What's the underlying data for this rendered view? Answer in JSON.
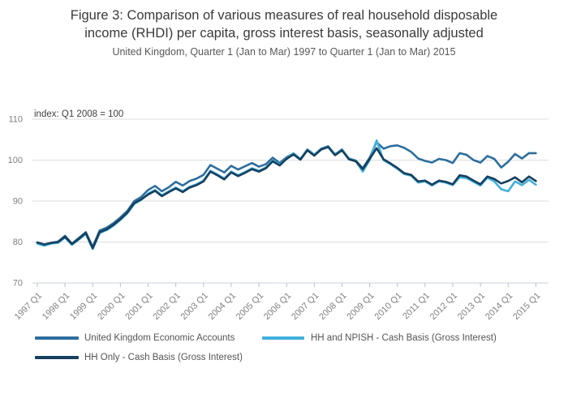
{
  "figure": {
    "title_line1": "Figure 3: Comparison of various measures of real household disposable",
    "title_line2": "income (RHDI) per capita, gross interest basis, seasonally adjusted",
    "subtitle": "United Kingdom, Quarter 1 (Jan to Mar) 1997 to Quarter 1 (Jan to Mar) 2015"
  },
  "chart_data": {
    "type": "line",
    "annotation": "index: Q1 2008 = 100",
    "x_unit": "quarter",
    "x_start": "1997 Q1",
    "x_end": "2015 Q1",
    "x_tick_labels": [
      "1997 Q1",
      "1998 Q1",
      "1999 Q1",
      "2000 Q1",
      "2001 Q1",
      "2002 Q1",
      "2003 Q1",
      "2004 Q1",
      "2005 Q1",
      "2006 Q1",
      "2007 Q1",
      "2008 Q1",
      "2009 Q1",
      "2010 Q1",
      "2011 Q1",
      "2012 Q1",
      "2013 Q1",
      "2014 Q1",
      "2015 Q1"
    ],
    "y_ticks": [
      110,
      100,
      90,
      80,
      70
    ],
    "ylim": [
      70,
      111.5
    ],
    "grid": "horizontal",
    "legend_position": "bottom",
    "colors": {
      "grid": "#dcdcdc",
      "axis": "#c9d2d9",
      "tick": "#b4bfc9",
      "tick_label": "#808080",
      "annotation": "#3f3f3f"
    },
    "series": [
      {
        "name": "United Kingdom Economic Accounts",
        "color": "#2e6e9e",
        "values": [
          79.8,
          79.3,
          79.8,
          80.1,
          81.5,
          79.6,
          81.0,
          82.4,
          78.8,
          82.8,
          83.5,
          84.6,
          86.0,
          87.6,
          90.0,
          91.0,
          92.7,
          93.7,
          92.4,
          93.4,
          94.7,
          93.8,
          94.9,
          95.5,
          96.4,
          98.8,
          97.9,
          97.0,
          98.6,
          97.7,
          98.5,
          99.3,
          98.4,
          99.0,
          100.6,
          99.3,
          100.7,
          101.6,
          100.3,
          102.6,
          101.3,
          102.8,
          103.4,
          101.4,
          102.6,
          100.4,
          99.9,
          98.0,
          100.6,
          104.4,
          102.8,
          103.4,
          103.6,
          103.0,
          102.0,
          100.4,
          99.8,
          99.4,
          100.3,
          100.0,
          99.3,
          101.7,
          101.3,
          100.0,
          99.4,
          101.0,
          100.3,
          98.2,
          99.6,
          101.5,
          100.4,
          101.7,
          101.7
        ]
      },
      {
        "name": "HH and NPISH - Cash Basis (Gross Interest)",
        "color": "#41afdb",
        "values": [
          79.6,
          79.1,
          79.6,
          79.8,
          81.1,
          79.3,
          80.6,
          82.0,
          78.3,
          82.2,
          82.9,
          84.0,
          85.4,
          87.0,
          89.3,
          90.3,
          91.8,
          92.7,
          91.4,
          92.4,
          93.3,
          92.4,
          93.5,
          94.1,
          95.0,
          97.4,
          96.5,
          95.5,
          97.2,
          96.3,
          97.1,
          98.0,
          97.4,
          98.2,
          99.9,
          98.9,
          100.4,
          101.7,
          100.2,
          102.5,
          101.2,
          102.7,
          103.3,
          101.3,
          102.5,
          100.3,
          99.8,
          97.2,
          100.0,
          104.8,
          100.0,
          99.0,
          97.9,
          96.6,
          96.2,
          94.5,
          94.8,
          93.8,
          94.8,
          94.5,
          93.9,
          95.8,
          95.6,
          94.7,
          93.8,
          95.7,
          94.8,
          92.9,
          92.4,
          94.8,
          93.9,
          95.2,
          94.0
        ]
      },
      {
        "name": "HH Only - Cash Basis (Gross Interest)",
        "color": "#16405f",
        "values": [
          79.9,
          79.4,
          79.8,
          80.0,
          81.3,
          79.5,
          80.8,
          82.2,
          78.5,
          82.4,
          83.1,
          84.2,
          85.6,
          87.2,
          89.5,
          90.4,
          91.6,
          92.5,
          91.2,
          92.2,
          93.1,
          92.2,
          93.3,
          93.9,
          94.8,
          97.2,
          96.3,
          95.3,
          97.0,
          96.1,
          96.9,
          97.8,
          97.2,
          98.0,
          99.7,
          98.7,
          100.3,
          101.4,
          100.1,
          102.4,
          101.1,
          102.6,
          103.2,
          101.2,
          102.4,
          100.2,
          99.7,
          97.8,
          100.3,
          102.9,
          100.2,
          99.2,
          98.1,
          96.8,
          96.4,
          94.8,
          95.0,
          94.0,
          95.0,
          94.7,
          94.1,
          96.3,
          96.0,
          95.0,
          94.1,
          96.0,
          95.4,
          94.3,
          94.9,
          95.8,
          94.6,
          96.0,
          94.9
        ]
      }
    ]
  }
}
